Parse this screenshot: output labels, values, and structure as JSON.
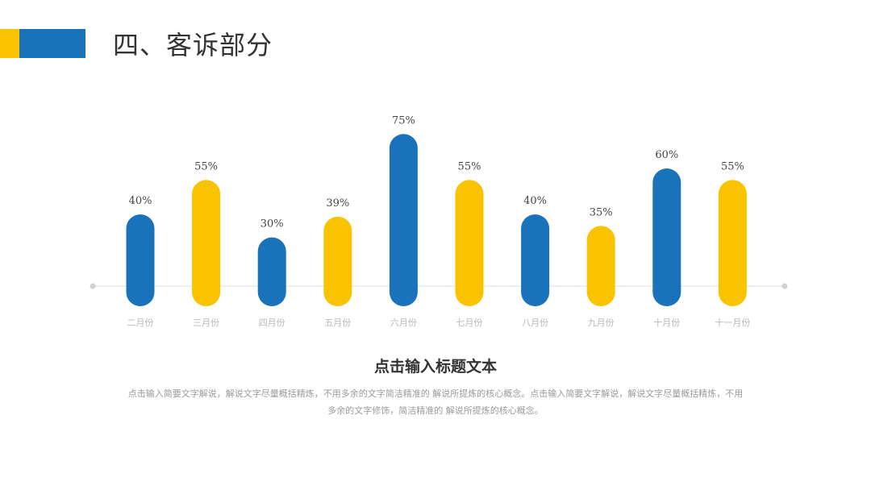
{
  "header": {
    "title": "四、客诉部分"
  },
  "colors": {
    "blue": "#1A72BB",
    "yellow": "#F9C300",
    "baseline": "#E8E8E8",
    "label": "#444444",
    "category": "#B8B8B8"
  },
  "chart_data": {
    "type": "bar",
    "categories": [
      "二月份",
      "三月份",
      "四月份",
      "五月份",
      "六月份",
      "七月份",
      "八月份",
      "九月份",
      "十月份",
      "十一月份"
    ],
    "values": [
      40,
      55,
      30,
      39,
      75,
      55,
      40,
      35,
      60,
      55
    ],
    "value_labels": [
      "40%",
      "55%",
      "30%",
      "39%",
      "75%",
      "55%",
      "40%",
      "35%",
      "60%",
      "55%"
    ],
    "bar_colors": [
      "blue",
      "yellow",
      "blue",
      "yellow",
      "blue",
      "yellow",
      "blue",
      "yellow",
      "blue",
      "yellow"
    ],
    "unit": "%",
    "ylim": [
      0,
      100
    ],
    "grid": false
  },
  "text": {
    "subtitle": "点击输入标题文本",
    "description": "点击输入简要文字解说，解说文字尽量概括精炼，不用多余的文字简洁精准的 解说所提炼的核心概念。点击输入简要文字解说，解说文字尽量概括精炼，不用多余的文字修饰，简洁精准的 解说所提炼的核心概念。"
  }
}
